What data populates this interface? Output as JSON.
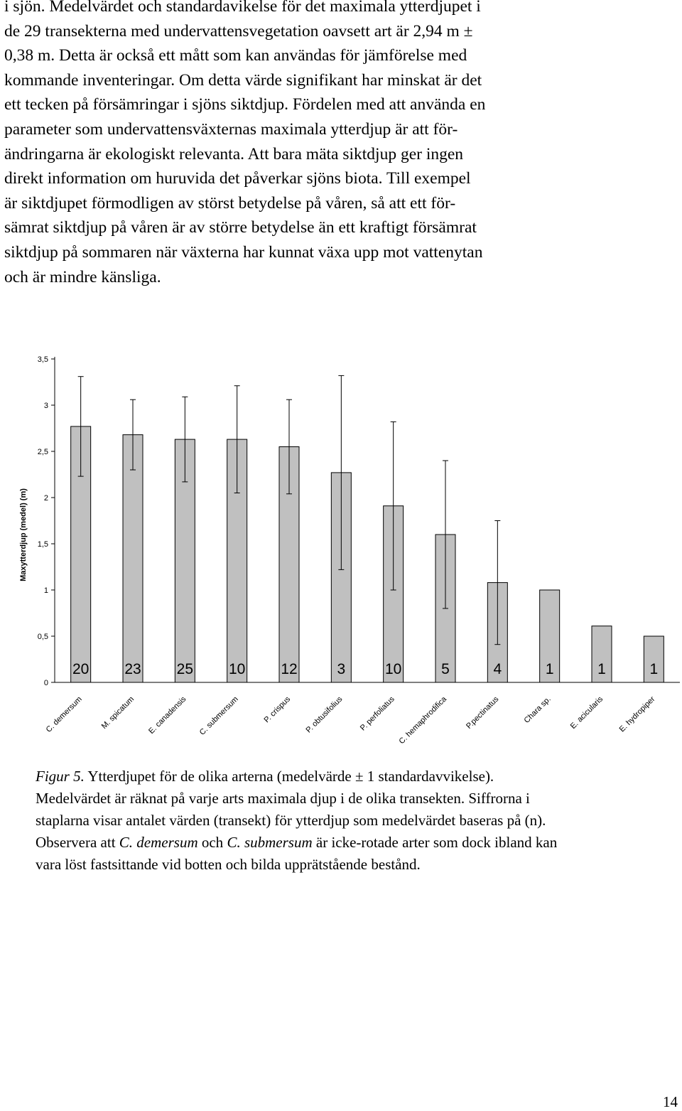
{
  "body_lines": [
    "i sjön. Medelvärdet och standardavikelse för det maximala ytterdjupet i",
    "de 29 transekterna med undervattensvegetation oavsett art är 2,94 m ±",
    "0,38 m. Detta är också ett mått som kan användas för jämförelse med",
    "kommande inventeringar. Om detta värde signifikant har minskat är det",
    "ett tecken på försämringar i sjöns siktdjup. Fördelen med att använda en",
    "parameter som undervattensväxternas maximala ytterdjup är att för-",
    "ändringarna är ekologiskt relevanta. Att bara mäta siktdjup ger ingen",
    "direkt information om huruvida det påverkar sjöns biota. Till exempel",
    "är siktdjupet förmodligen av störst betydelse på våren, så att ett för-",
    "sämrat siktdjup på våren är av större betydelse än ett kraftigt försämrat",
    "siktdjup på sommaren när växterna har kunnat växa upp mot vattenytan",
    "och är mindre känsliga."
  ],
  "chart_data": {
    "type": "bar",
    "ylabel": "Maxytterdjup (medel) (m)",
    "xlabel": "",
    "ylim": [
      0,
      3.5
    ],
    "yticks": [
      "0",
      "0,5",
      "1",
      "1,5",
      "2",
      "2,5",
      "3",
      "3,5"
    ],
    "categories": [
      "C. demersum",
      "M. spicatum",
      "E. canadensis",
      "C. submersum",
      "P. crispus",
      "P. obtusifolius",
      "P. perfoliatus",
      "C. hemaphrodifica",
      "P.pectinatus",
      "Chara sp.",
      "E. acicularis",
      "E. hydropiper"
    ],
    "values": [
      2.77,
      2.68,
      2.63,
      2.63,
      2.55,
      2.27,
      1.91,
      1.6,
      1.08,
      1.0,
      0.61,
      0.5
    ],
    "error": [
      0.54,
      0.38,
      0.46,
      0.58,
      0.51,
      1.05,
      0.91,
      0.8,
      0.67,
      0,
      0,
      0
    ],
    "n_labels": [
      "20",
      "23",
      "25",
      "10",
      "12",
      "3",
      "10",
      "5",
      "4",
      "1",
      "1",
      "1"
    ],
    "bar_color": "#c0c0c0",
    "grid": false
  },
  "caption": {
    "lines": [
      [
        {
          "t": "Figur 5.",
          "i": true
        },
        {
          "t": " Ytterdjupet för de olika arterna (medelvärde ± 1 standardavvikelse).",
          "i": false
        }
      ],
      [
        {
          "t": "Medelvärdet är räknat på varje arts maximala djup i de olika transekten. Siffrorna i",
          "i": false
        }
      ],
      [
        {
          "t": "staplarna visar antalet värden (transekt) för ytterdjup som medelvärdet baseras på (n).",
          "i": false
        }
      ],
      [
        {
          "t": "Observera att ",
          "i": false
        },
        {
          "t": "C. demersum",
          "i": true
        },
        {
          "t": " och ",
          "i": false
        },
        {
          "t": "C. submersum",
          "i": true
        },
        {
          "t": " är icke-rotade arter som dock ibland kan",
          "i": false
        }
      ],
      [
        {
          "t": "vara löst fastsittande vid botten och bilda upprätstående bestånd.",
          "i": false
        }
      ]
    ]
  },
  "page_number": "14"
}
